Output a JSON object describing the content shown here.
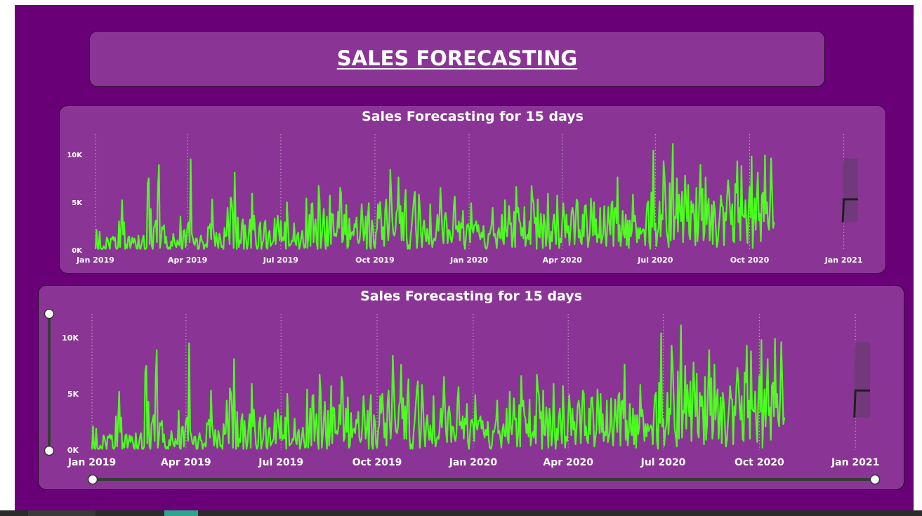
{
  "page": {
    "title": "SALES FORECASTING"
  },
  "colors": {
    "background": "#690077",
    "panel": "#8a3595",
    "series": "#4cff1e",
    "forecast": "#1f1f1f",
    "band": "#6e3a78"
  },
  "chart_data": [
    {
      "type": "line",
      "title": "Sales Forecasting for 15 days",
      "x_ticks": [
        "Jan 2019",
        "Apr 2019",
        "Jul 2019",
        "Oct 2019",
        "Jan 2020",
        "Apr 2020",
        "Jul 2020",
        "Oct 2020",
        "Jan 2021"
      ],
      "y_ticks": [
        "0K",
        "5K",
        "10K"
      ],
      "ylim": [
        0,
        10000
      ],
      "xlim": [
        "2019-01-01",
        "2021-01-15"
      ],
      "grid": "vertical-dotted",
      "series": [
        {
          "values_start": "2019-01-01",
          "values_step_days": 1,
          "values": [
            100,
            2100,
            200,
            100,
            1900,
            200,
            100,
            100,
            400,
            200,
            100,
            1300,
            1100,
            600,
            100,
            1200,
            1100,
            1400,
            1000,
            1300,
            200,
            100,
            300,
            3000,
            300,
            2500,
            5200,
            1600,
            2900,
            100,
            600,
            200,
            1300,
            1400,
            200,
            700,
            1300,
            700,
            1200,
            800,
            200,
            100,
            1500,
            200,
            100,
            600,
            1200,
            1500,
            100,
            100,
            300,
            7000,
            7500,
            600,
            4300,
            400,
            100,
            2300,
            2600,
            3100,
            800,
            6500,
            8900,
            200,
            1000,
            2400,
            2200,
            2600,
            700,
            1400,
            300,
            100,
            300,
            100,
            900,
            400,
            1700,
            1000,
            500,
            300,
            1000,
            600,
            500,
            3500,
            200,
            100,
            2000,
            2100,
            300,
            1600,
            2600,
            2900,
            800,
            9500,
            1700,
            1300,
            700,
            500,
            1200,
            1200,
            100,
            100,
            900,
            1500,
            900,
            800,
            100,
            500,
            600,
            300,
            2400,
            2300,
            2700,
            1100,
            5300,
            2300,
            1400,
            400,
            1800,
            800,
            200,
            1700,
            1200,
            300,
            400,
            100,
            2300,
            1400,
            1500,
            4400,
            2300,
            600,
            5500,
            5100,
            3700,
            200,
            8100,
            2700,
            100,
            3400,
            300,
            1000,
            700,
            2700,
            3200,
            100,
            2600,
            1300,
            100,
            700,
            2200,
            3200,
            200,
            5900,
            2100,
            3600,
            1900,
            500,
            100,
            400,
            2400,
            2900,
            100,
            700,
            1000,
            2700,
            3100,
            300,
            100,
            1700,
            2000,
            400,
            600,
            800,
            1000,
            3300,
            600,
            2300,
            3600,
            2100,
            1000,
            3000,
            900,
            1300,
            1000,
            2900,
            100,
            5000,
            2700,
            400,
            500,
            600,
            1000,
            900,
            2800,
            900,
            500,
            1500,
            1800,
            100,
            500,
            1300,
            2000,
            800,
            200,
            300,
            5400,
            200,
            1500,
            3700,
            400,
            4800,
            4900,
            800,
            2300,
            3200,
            900,
            100,
            6700,
            5200,
            200,
            1300,
            2700,
            4300,
            1300,
            100,
            3500,
            400,
            1800,
            5700,
            600,
            3800,
            3700,
            1500,
            1700,
            1400,
            2000,
            4000,
            2300,
            6500,
            5900,
            800,
            1100,
            3700,
            1600,
            4700,
            200,
            400,
            3300,
            1100,
            1800,
            1900,
            1500,
            2700,
            2400,
            3400,
            1100,
            700,
            1000,
            2300,
            4800,
            3200,
            1000,
            1800,
            3500,
            100,
            3400,
            4900,
            500,
            100,
            3100,
            2500,
            500,
            200,
            1800,
            2200,
            4800,
            3300,
            5000,
            3300,
            1100,
            2400,
            400,
            4200,
            5300,
            2700,
            1000,
            2800,
            8400,
            5700,
            3000,
            1700,
            1500,
            2000,
            3900,
            4300,
            7600,
            2800,
            4600,
            1000,
            3900,
            1000,
            4700,
            6300,
            1200,
            100,
            500,
            100,
            1600,
            2600,
            4000,
            5300,
            6100,
            2200,
            200,
            1600,
            5800,
            4100,
            1700,
            300,
            2300,
            3100,
            1700,
            900,
            2200,
            1000,
            600,
            4800,
            1400,
            300,
            900,
            1200,
            1000,
            2100,
            3700,
            2000,
            3600,
            6500,
            4000,
            1600,
            700,
            3300,
            3900,
            2900,
            700,
            2100,
            2000,
            1200,
            800,
            1500,
            4500,
            5600,
            2200,
            2500,
            1900,
            3000,
            1000,
            2800,
            2300,
            4100,
            700,
            100,
            1500,
            2600,
            2700,
            2200,
            800,
            4900,
            2200,
            1800,
            2600,
            2600,
            3000,
            1900,
            2600,
            1600,
            1100,
            1800,
            1300,
            2500,
            900,
            200,
            100,
            500,
            1700,
            1600,
            2100,
            2700,
            4400,
            1500,
            1700,
            1100,
            200,
            1800,
            2300,
            1300,
            1200,
            3700,
            1000,
            600,
            5200,
            2000,
            1400,
            2700,
            4600,
            2700,
            2800,
            300,
            1400,
            4000,
            300,
            6600,
            3900,
            4400,
            3100,
            2800,
            1500,
            2300,
            1200,
            4500,
            400,
            1200,
            1600,
            1100,
            3000,
            600,
            6700,
            5400,
            4900,
            2800,
            3400,
            100,
            5300,
            1400,
            1300,
            3800,
            2500,
            200,
            3700,
            2800,
            400,
            1400,
            5900,
            1700,
            100,
            1900,
            900,
            2900,
            3700,
            1900,
            600,
            5700,
            2700,
            200,
            1200,
            800,
            3000,
            4900,
            3300,
            1300,
            3700,
            1800,
            2500,
            500,
            1900,
            3900,
            4400,
            3600,
            600,
            3100,
            5300,
            5000,
            1300,
            2100,
            900,
            600,
            3700,
            1400,
            4600,
            4700,
            3000,
            300,
            1000,
            1800,
            5400,
            3600,
            1500,
            5000,
            1600,
            3200,
            800,
            1600,
            1300,
            4400,
            700,
            1200,
            1700,
            4600,
            1800,
            400,
            2500,
            4500,
            2600,
            1600,
            4800,
            5100,
            400,
            4300,
            4400,
            2800,
            7600,
            900,
            2600,
            400,
            1600,
            4100,
            1700,
            1300,
            3700,
            500,
            3100,
            200,
            3100,
            1400,
            2000,
            5800,
            3000,
            3600,
            2500,
            800,
            2300,
            1200,
            2300,
            1700,
            1900,
            2200,
            2000,
            500,
            3200,
            4800,
            5100,
            800,
            100,
            6000,
            2400,
            10400,
            2100,
            2800,
            400,
            1700,
            2200,
            5100,
            1400,
            3700,
            3200,
            9300,
            7600,
            4800,
            1900,
            1200,
            300,
            7000,
            1000,
            5700,
            11100,
            1100,
            3500,
            3300,
            7500,
            1900,
            5800,
            4300,
            3000,
            6100,
            800,
            4200,
            7800,
            5000,
            3000,
            6800,
            1600,
            1100,
            5100,
            3900,
            4800,
            3400,
            500,
            6500,
            900,
            2300,
            5700,
            8900,
            3100,
            6400,
            1000,
            1800,
            7600,
            2700,
            4400,
            5400,
            1000,
            2800,
            4700,
            600,
            5100,
            4200,
            2300,
            300,
            900,
            2500,
            3800,
            5700,
            4600,
            4500,
            500,
            3900,
            3100,
            5600,
            7300,
            6000,
            4000,
            2700,
            4800,
            1000,
            800,
            6900,
            6000,
            9300,
            2900,
            4400,
            1000,
            8800,
            3700,
            3500,
            3400,
            5200,
            2400,
            700,
            4400,
            6600,
            3400,
            9800,
            200,
            3100,
            5400,
            2100,
            5300,
            8100,
            3100,
            3800,
            900,
            5700,
            6000,
            3000,
            9900,
            3800,
            5000,
            2700,
            2100,
            4800,
            9600,
            6100,
            2300,
            2900
          ],
          "note_unit": "sales"
        }
      ],
      "forecast": {
        "x": [
          "2020-12-31",
          "2021-01-01",
          "2021-01-15"
        ],
        "y": [
          2900,
          5300,
          5300
        ],
        "band_upper": [
          8500,
          9600,
          9600
        ],
        "band_lower": [
          1000,
          2900,
          2900
        ]
      }
    },
    {
      "type": "line",
      "title": "Sales Forecasting for 15 days",
      "x_ticks": [
        "Jan 2019",
        "Apr 2019",
        "Jul 2019",
        "Oct 2019",
        "Jan 2020",
        "Apr 2020",
        "Jul 2020",
        "Oct 2020",
        "Jan 2021"
      ],
      "y_ticks": [
        "0K",
        "5K",
        "10K"
      ],
      "ylim": [
        0,
        10000
      ],
      "xlim": [
        "2019-01-01",
        "2021-01-15"
      ],
      "grid": "vertical-dotted",
      "same_series_as": 0,
      "sliders": {
        "y_range": [
          0,
          1
        ],
        "x_range": [
          0,
          1
        ]
      }
    }
  ]
}
